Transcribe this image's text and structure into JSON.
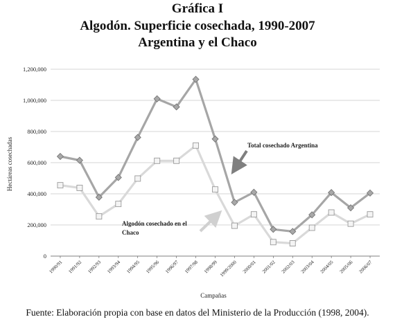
{
  "figure": {
    "label": "Gráfica I",
    "title": "Algodón. Superficie cosechada, 1990-2007",
    "subtitle": "Argentina y el Chaco",
    "source": "Fuente: Elaboración propia con base en datos del Ministerio de la Producción (1998, 2004)."
  },
  "chart_data": {
    "type": "line",
    "xlabel": "Campañas",
    "ylabel": "Hectáreas cosechadas",
    "ylim": [
      0,
      1200000
    ],
    "yticks": [
      0,
      200000,
      400000,
      600000,
      800000,
      1000000,
      1200000
    ],
    "ytick_labels": [
      "0",
      "200,000",
      "400,000",
      "600,000",
      "800,000",
      "1,000,000",
      "1,200,000"
    ],
    "grid": "horizontal",
    "categories": [
      "1990/91",
      "1991/92",
      "1992/93",
      "1993/94",
      "1994/95",
      "1995/96",
      "1996/97",
      "1997/98",
      "1998/99",
      "1999/2000",
      "2000/01",
      "2001/02",
      "2002/03",
      "2003/04",
      "2004/05",
      "2005/06",
      "2006/07"
    ],
    "series": [
      {
        "name": "Total cosechado Argentina",
        "marker": "diamond",
        "line_color": "#a6a6a6",
        "marker_fill": "#a8a8a8",
        "values": [
          640000,
          615000,
          378000,
          505000,
          762000,
          1010000,
          958000,
          1135000,
          752000,
          345000,
          410000,
          172000,
          158000,
          265000,
          408000,
          310000,
          405000
        ]
      },
      {
        "name": "Algodón cosechado en el Chaco",
        "marker": "square",
        "line_color": "#d9d9d9",
        "marker_fill": "#f4f4f4",
        "values": [
          455000,
          438000,
          255000,
          335000,
          498000,
          612000,
          612000,
          710000,
          428000,
          195000,
          268000,
          90000,
          82000,
          182000,
          280000,
          208000,
          268000
        ]
      }
    ],
    "annotations": [
      {
        "text": "Total cosechado Argentina",
        "arrow_color": "#7f7f7f"
      },
      {
        "text_lines": [
          "Algodón cosechado en el",
          "Chaco"
        ],
        "arrow_color": "#d0d0d0"
      }
    ]
  }
}
